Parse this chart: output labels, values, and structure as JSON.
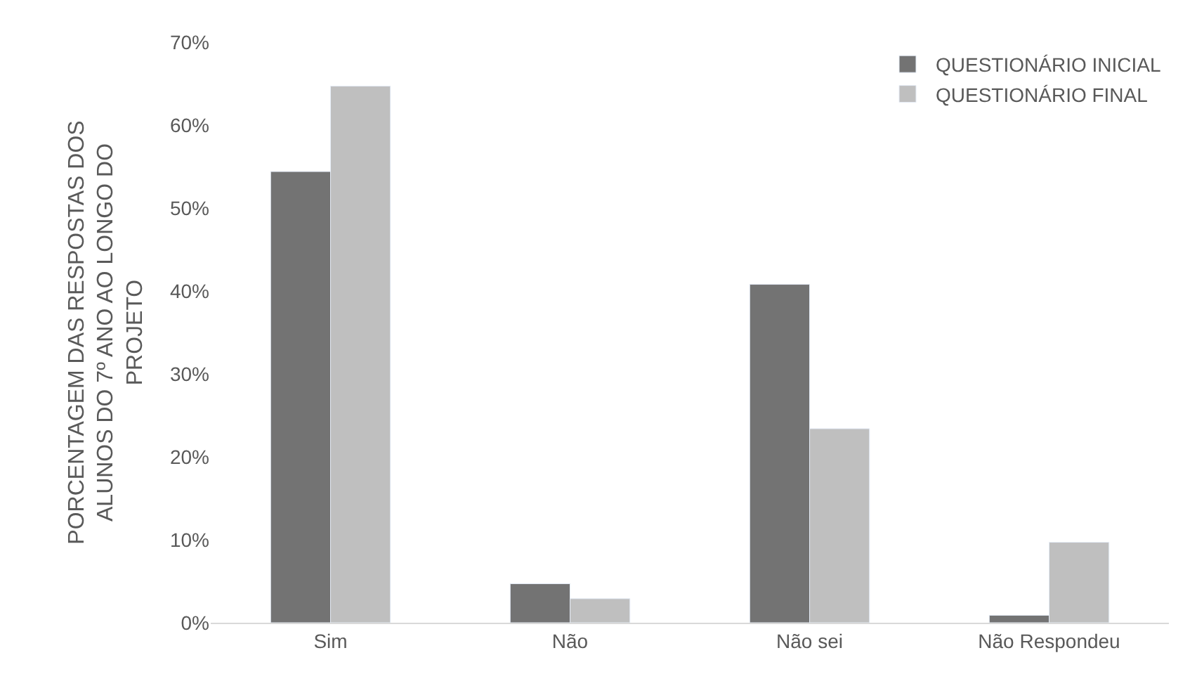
{
  "chart_data": {
    "type": "bar",
    "ylabel": "PORCENTAGEM DAS RESPOSTAS DOS ALUNOS DO 7º ANO AO LONGO DO PROJETO",
    "categories": [
      "Sim",
      "Não",
      "Não sei",
      "Não Respondeu"
    ],
    "series": [
      {
        "name": "QUESTIONÁRIO INICIAL",
        "color": "#737373",
        "values": [
          54.4,
          4.7,
          40.8,
          0.9
        ]
      },
      {
        "name": "QUESTIONÁRIO FINAL",
        "color": "#bfbfbf",
        "values": [
          64.7,
          2.9,
          23.4,
          9.7
        ]
      }
    ],
    "ylim": [
      0,
      70
    ],
    "yticks": [
      {
        "value": 0,
        "label": "0%"
      },
      {
        "value": 10,
        "label": "10%"
      },
      {
        "value": 20,
        "label": "20%"
      },
      {
        "value": 30,
        "label": "30%"
      },
      {
        "value": 40,
        "label": "40%"
      },
      {
        "value": 50,
        "label": "50%"
      },
      {
        "value": 60,
        "label": "60%"
      },
      {
        "value": 70,
        "label": "70%"
      }
    ],
    "grid": false,
    "legend": "top right"
  }
}
